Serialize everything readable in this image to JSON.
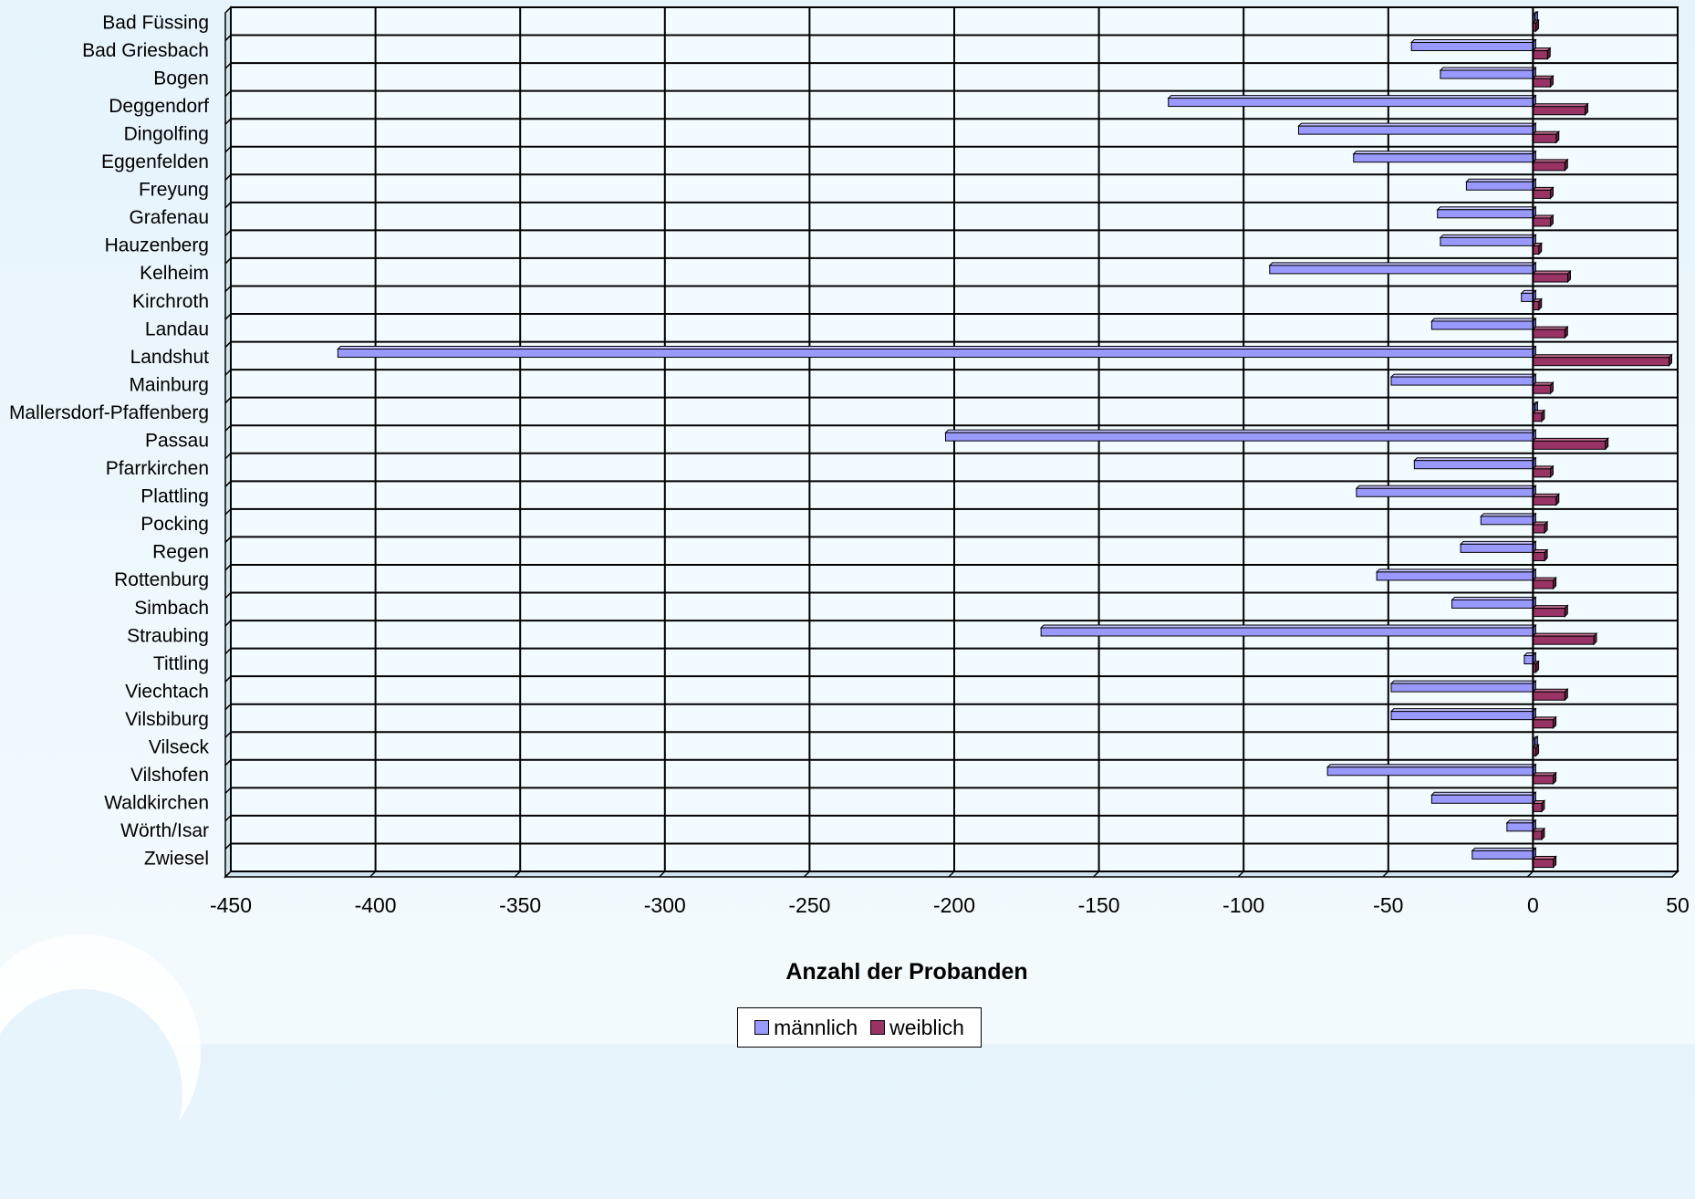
{
  "chart_data": {
    "type": "bar",
    "orientation": "horizontal",
    "title": "",
    "xlabel": "Anzahl der Probanden",
    "ylabel": "",
    "xlim": [
      -450,
      50
    ],
    "x_ticks": [
      "-450",
      "-400",
      "-350",
      "-300",
      "-250",
      "-200",
      "-150",
      "-100",
      "-50",
      "0",
      "50"
    ],
    "grid": true,
    "legend": "bottom-center",
    "categories": [
      "Bad Füssing",
      "Bad Griesbach",
      "Bogen",
      "Deggendorf",
      "Dingolfing",
      "Eggenfelden",
      "Freyung",
      "Grafenau",
      "Hauzenberg",
      "Kelheim",
      "Kirchroth",
      "Landau",
      "Landshut",
      "Mainburg",
      "Mallersdorf-Pfaffenberg",
      "Passau",
      "Pfarrkirchen",
      "Plattling",
      "Pocking",
      "Regen",
      "Rottenburg",
      "Simbach",
      "Straubing",
      "Tittling",
      "Viechtach",
      "Vilsbiburg",
      "Vilseck",
      "Vilshofen",
      "Waldkirchen",
      "Wörth/Isar",
      "Zwiesel"
    ],
    "series": [
      {
        "name": "männlich",
        "color": "#9999ff",
        "values": [
          0,
          -42,
          -32,
          -126,
          -81,
          -62,
          -23,
          -33,
          -32,
          -91,
          -4,
          -35,
          -413,
          -49,
          0,
          -203,
          -41,
          -61,
          -18,
          -25,
          -54,
          -28,
          -170,
          -3,
          -49,
          -49,
          0,
          -71,
          -35,
          -9,
          -21
        ]
      },
      {
        "name": "weiblich",
        "color": "#993366",
        "values": [
          1,
          5,
          6,
          18,
          8,
          11,
          6,
          6,
          2,
          12,
          2,
          11,
          47,
          6,
          3,
          25,
          6,
          8,
          4,
          4,
          7,
          11,
          21,
          1,
          11,
          7,
          1,
          7,
          3,
          3,
          7
        ]
      }
    ]
  }
}
